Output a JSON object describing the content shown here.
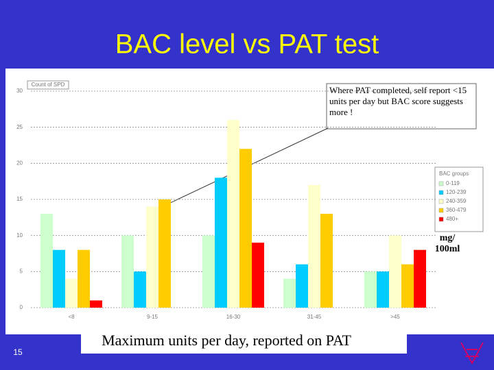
{
  "slide_number": "15",
  "chart_data": {
    "type": "bar",
    "title": "BAC level vs PAT test",
    "y_label": "Count of SPD",
    "x_label": "Maximum units per day, reported on PAT",
    "legend_title": "BAC groups",
    "unit_label": "mg/ 100ml",
    "annotation": "Where PAT completed, self report <15 units per day but BAC score suggests more !",
    "categories": [
      "<8",
      "9-15",
      "16-30",
      "31-45",
      ">45"
    ],
    "series": [
      {
        "name": "0-119",
        "color": "#ccffcc",
        "values": [
          13,
          10,
          10,
          4,
          5
        ]
      },
      {
        "name": "120-239",
        "color": "#00ccff",
        "values": [
          8,
          5,
          18,
          6,
          5
        ]
      },
      {
        "name": "240-359",
        "color": "#ffffcc",
        "values": [
          4,
          14,
          26,
          17,
          10
        ]
      },
      {
        "name": "360-479",
        "color": "#ffcc00",
        "values": [
          8,
          15,
          22,
          13,
          6
        ]
      },
      {
        "name": "480+",
        "color": "#ff0000",
        "values": [
          1,
          0,
          9,
          0,
          8
        ]
      }
    ],
    "ylim": [
      0,
      30
    ],
    "yticks": [
      0,
      5,
      10,
      15,
      20,
      25,
      30
    ],
    "grid": true,
    "legend": "right"
  }
}
